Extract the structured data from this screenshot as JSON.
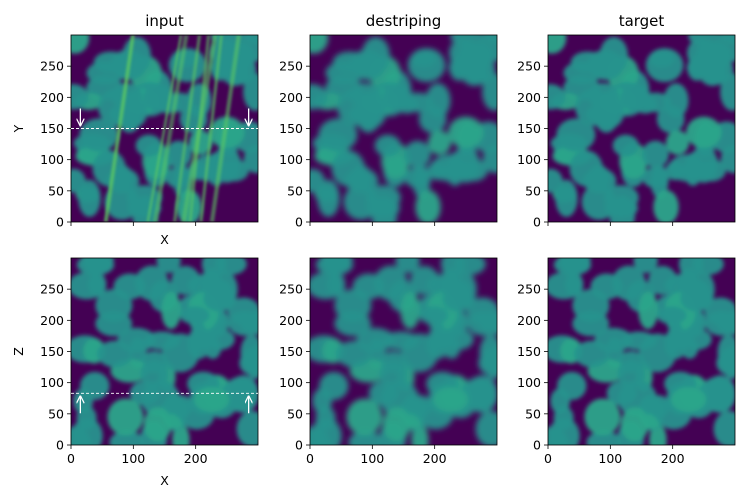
{
  "chart_data": [
    {
      "type": "heatmap",
      "panel": "top-left",
      "title": "input",
      "xlabel": "X",
      "ylabel": "Y",
      "xlim": [
        0,
        300
      ],
      "ylim": [
        0,
        300
      ],
      "xticks": [
        0,
        100,
        200
      ],
      "yticks": [
        0,
        50,
        100,
        150,
        200,
        250
      ],
      "show_xtick_labels": false,
      "show_ytick_labels": true,
      "colormap": "viridis",
      "annotations": {
        "dashed_line_y": 150,
        "arrow_direction": "down",
        "arrow_x": [
          15,
          285
        ]
      },
      "stripes": true
    },
    {
      "type": "heatmap",
      "panel": "top-middle",
      "title": "destriping",
      "xlabel": "",
      "ylabel": "",
      "xlim": [
        0,
        300
      ],
      "ylim": [
        0,
        300
      ],
      "xticks": [
        0,
        100,
        200
      ],
      "yticks": [
        0,
        50,
        100,
        150,
        200,
        250
      ],
      "show_xtick_labels": false,
      "show_ytick_labels": true,
      "colormap": "viridis"
    },
    {
      "type": "heatmap",
      "panel": "top-right",
      "title": "target",
      "xlabel": "",
      "ylabel": "",
      "xlim": [
        0,
        300
      ],
      "ylim": [
        0,
        300
      ],
      "xticks": [
        0,
        100,
        200
      ],
      "yticks": [
        0,
        50,
        100,
        150,
        200,
        250
      ],
      "show_xtick_labels": false,
      "show_ytick_labels": true,
      "colormap": "viridis"
    },
    {
      "type": "heatmap",
      "panel": "bottom-left",
      "title": "",
      "xlabel": "X",
      "ylabel": "Z",
      "xlim": [
        0,
        300
      ],
      "ylim": [
        0,
        300
      ],
      "xticks": [
        0,
        100,
        200
      ],
      "yticks": [
        0,
        50,
        100,
        150,
        200,
        250
      ],
      "show_xtick_labels": true,
      "show_ytick_labels": true,
      "colormap": "viridis",
      "annotations": {
        "dashed_line_y": 83,
        "arrow_direction": "up",
        "arrow_x": [
          15,
          285
        ]
      }
    },
    {
      "type": "heatmap",
      "panel": "bottom-middle",
      "title": "",
      "xlabel": "",
      "ylabel": "",
      "xlim": [
        0,
        300
      ],
      "ylim": [
        0,
        300
      ],
      "xticks": [
        0,
        100,
        200
      ],
      "yticks": [
        0,
        50,
        100,
        150,
        200,
        250
      ],
      "show_xtick_labels": true,
      "show_ytick_labels": true,
      "colormap": "viridis"
    },
    {
      "type": "heatmap",
      "panel": "bottom-right",
      "title": "",
      "xlabel": "",
      "ylabel": "",
      "xlim": [
        0,
        300
      ],
      "ylim": [
        0,
        300
      ],
      "xticks": [
        0,
        100,
        200
      ],
      "yticks": [
        0,
        50,
        100,
        150,
        200,
        250
      ],
      "show_xtick_labels": true,
      "show_ytick_labels": true,
      "colormap": "viridis"
    }
  ],
  "colors": {
    "background": "#440154",
    "blob": "#26928d",
    "blob_light": "#2aa58a",
    "stripe": "#5ec962",
    "annotation": "#ffffff"
  }
}
